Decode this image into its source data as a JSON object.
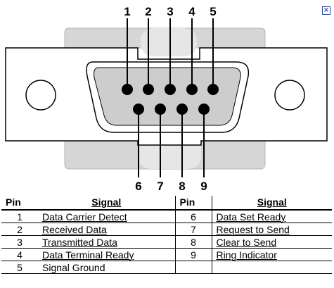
{
  "diagram": {
    "top_pins": [
      "1",
      "2",
      "3",
      "4",
      "5"
    ],
    "bottom_pins": [
      "6",
      "7",
      "8",
      "9"
    ]
  },
  "close_glyph": "×",
  "table": {
    "headers": {
      "pin_left": "Pin",
      "signal_left": "Signal",
      "pin_right": "Pin",
      "signal_right": "Signal"
    },
    "rows": [
      {
        "pin_left": "1",
        "signal_left": "Data Carrier Detect",
        "pin_right": "6",
        "signal_right": "Data Set Ready"
      },
      {
        "pin_left": "2",
        "signal_left": "Received Data",
        "pin_right": "7",
        "signal_right": "Request to Send"
      },
      {
        "pin_left": "3",
        "signal_left": "Transmitted Data",
        "pin_right": "8",
        "signal_right": "Clear to Send"
      },
      {
        "pin_left": "4",
        "signal_left": "Data  Terminal Ready",
        "pin_right": "9",
        "signal_right": "Ring Indicator"
      },
      {
        "pin_left": "5",
        "signal_left": "Signal Ground",
        "pin_right": "",
        "signal_right": ""
      }
    ]
  },
  "colors": {
    "shell_gray": "#d9d9d9",
    "face_gray": "#cfcfcf",
    "line": "#000000",
    "close_blue": "#2a4aa0"
  }
}
